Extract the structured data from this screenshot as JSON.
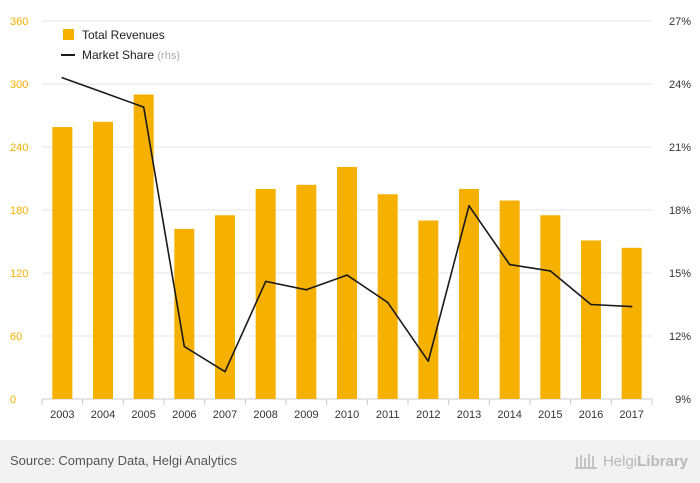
{
  "chart_data": {
    "type": "bar",
    "categories": [
      "2003",
      "2004",
      "2005",
      "2006",
      "2007",
      "2008",
      "2009",
      "2010",
      "2011",
      "2012",
      "2013",
      "2014",
      "2015",
      "2016",
      "2017"
    ],
    "series": [
      {
        "name": "Total Revenues",
        "type": "bar",
        "axis": "left",
        "values": [
          259,
          264,
          290,
          162,
          175,
          200,
          204,
          221,
          195,
          170,
          200,
          189,
          175,
          151,
          144
        ]
      },
      {
        "name": "Market Share",
        "name_suffix": "(rhs)",
        "type": "line",
        "axis": "right",
        "values": [
          24.3,
          23.6,
          22.9,
          11.5,
          10.3,
          14.6,
          14.2,
          14.9,
          13.6,
          10.8,
          18.2,
          15.4,
          15.1,
          13.5,
          13.4
        ]
      }
    ],
    "left_axis": {
      "ylim": [
        0,
        360
      ],
      "ticks": [
        0,
        60,
        120,
        180,
        240,
        300,
        360
      ]
    },
    "right_axis": {
      "ylim": [
        9,
        27
      ],
      "ticks": [
        9,
        12,
        15,
        18,
        21,
        24,
        27
      ],
      "tick_labels": [
        "9%",
        "12%",
        "15%",
        "18%",
        "21%",
        "24%",
        "27%"
      ]
    },
    "colors": {
      "bar": "#f5b000",
      "line": "#1a1a1a",
      "grid": "#e6e6e6",
      "left_tick": "#f5b000",
      "right_tick": "#333333"
    },
    "legend": {
      "placement": "top-left"
    },
    "grid": true
  },
  "footer": {
    "source": "Source: Company Data, Helgi Analytics",
    "logo_part1": "Helgi",
    "logo_part2": "Library"
  }
}
